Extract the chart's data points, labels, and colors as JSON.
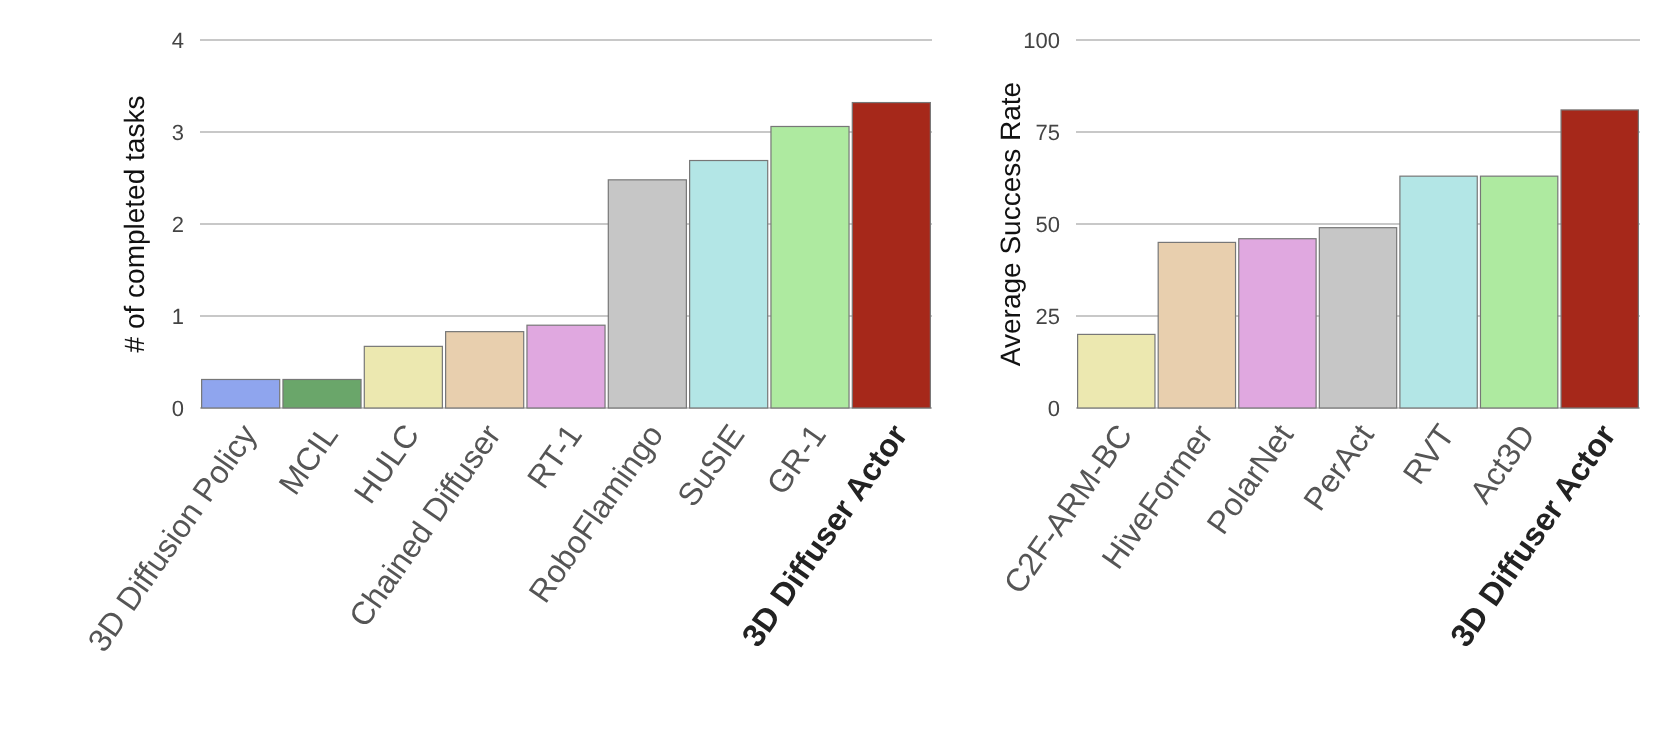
{
  "chart_data": [
    {
      "type": "bar",
      "ylabel": "# of completed tasks",
      "categories": [
        "3D Diffusion Policy",
        "MCIL",
        "HULC",
        "Chained Diffuser",
        "RT-1",
        "RoboFlamingo",
        "SuSIE",
        "GR-1",
        "3D Diffuser Actor"
      ],
      "values": [
        0.31,
        0.31,
        0.67,
        0.83,
        0.9,
        2.48,
        2.69,
        3.06,
        3.32
      ],
      "colors": [
        "#8fa5ee",
        "#6aa66a",
        "#ece8b0",
        "#e8cfae",
        "#e0a8e0",
        "#c6c6c6",
        "#b3e6e6",
        "#aeeaa0",
        "#a6281a"
      ],
      "ylim": [
        0,
        4
      ],
      "yticks": [
        0,
        1,
        2,
        3,
        4
      ],
      "grid": "y"
    },
    {
      "type": "bar",
      "ylabel": "Average Success Rate",
      "categories": [
        "C2F-ARM-BC",
        "HiveFormer",
        "PolarNet",
        "PerAct",
        "RVT",
        "Act3D",
        "3D Diffuser Actor"
      ],
      "values": [
        20,
        45,
        46,
        49,
        63,
        63,
        81
      ],
      "colors": [
        "#ece8b0",
        "#e8cfae",
        "#e0a8e0",
        "#c6c6c6",
        "#b3e6e6",
        "#aeeaa0",
        "#a6281a"
      ],
      "ylim": [
        0,
        100
      ],
      "yticks": [
        0,
        25,
        50,
        75,
        100
      ],
      "grid": "y"
    }
  ]
}
